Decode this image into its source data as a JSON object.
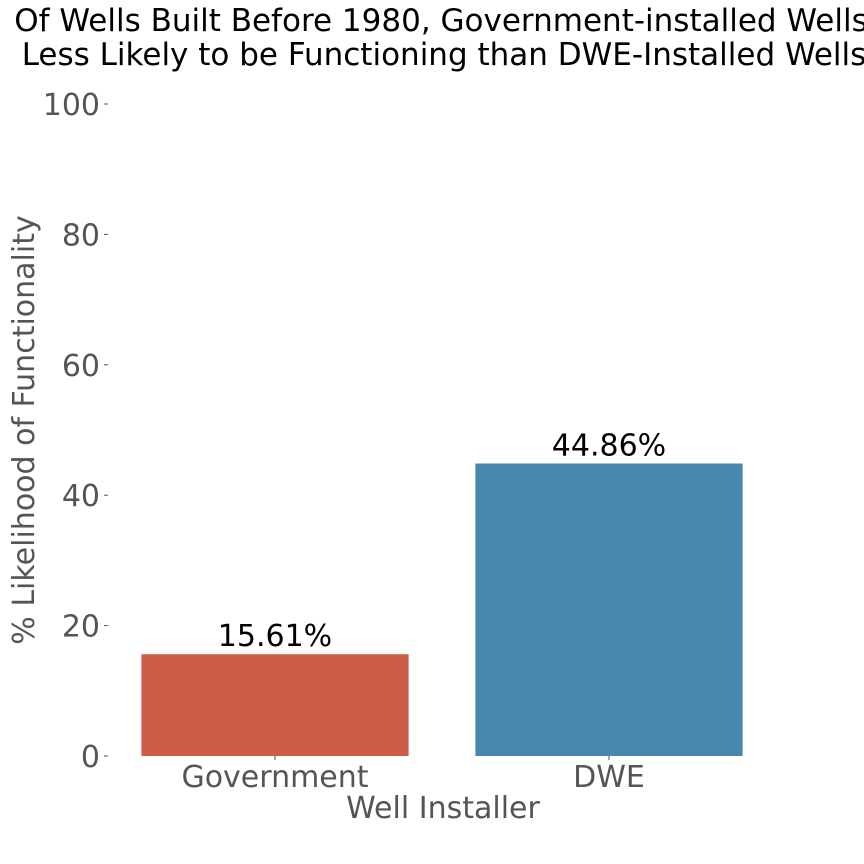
{
  "chart_data": {
    "type": "bar",
    "title_lines": [
      "Of Wells Built Before 1980, Government-installed Wells",
      "Less Likely to be Functioning than DWE-Installed Wells"
    ],
    "xlabel": "Well Installer",
    "ylabel": "% Likelihood of Functionality",
    "categories": [
      "Government",
      "DWE"
    ],
    "values": [
      15.61,
      44.86
    ],
    "data_labels": [
      "15.61%",
      "44.86%"
    ],
    "colors": [
      "#cd5c48",
      "#4688ae"
    ],
    "ylim": [
      0,
      100
    ],
    "yticks": [
      0,
      20,
      40,
      60,
      80,
      100
    ],
    "ytick_labels": [
      "0",
      "20",
      "40",
      "60",
      "80",
      "100"
    ],
    "grid": false,
    "legend": "none"
  }
}
